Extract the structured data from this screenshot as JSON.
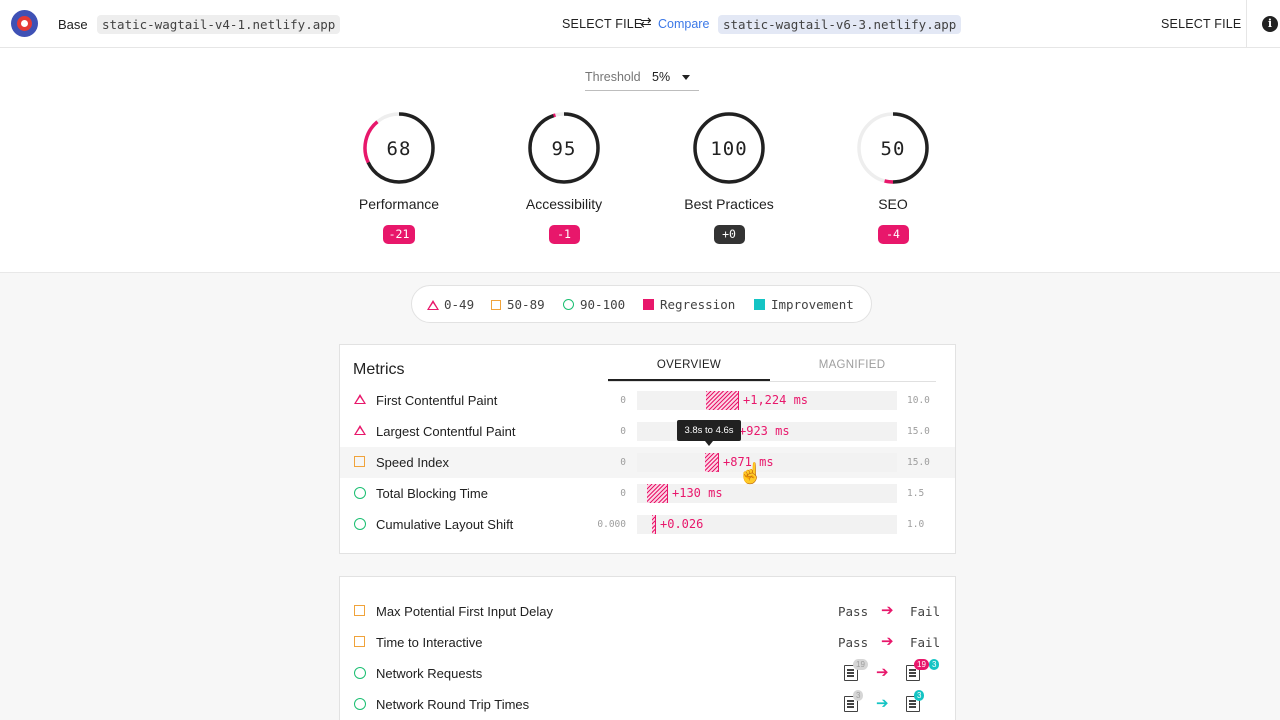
{
  "header": {
    "base_label": "Base",
    "base_url": "static-wagtail-v4-1.netlify.app",
    "select_file_left": "SELECT FILE",
    "compare_label": "Compare",
    "compare_url": "static-wagtail-v6-3.netlify.app",
    "select_file_right": "SELECT FILE",
    "info_symbol": "i"
  },
  "threshold": {
    "label": "Threshold",
    "value": "5%"
  },
  "scores": [
    {
      "name": "Performance",
      "score": "68",
      "delta": "-21",
      "fraction": 0.68,
      "status": "average"
    },
    {
      "name": "Accessibility",
      "score": "95",
      "delta": "-1",
      "fraction": 0.95,
      "status": "pass"
    },
    {
      "name": "Best Practices",
      "score": "100",
      "delta": "+0",
      "fraction": 1.0,
      "status": "pass"
    },
    {
      "name": "SEO",
      "score": "50",
      "delta": "-4",
      "fraction": 0.5,
      "status": "average"
    }
  ],
  "legend": {
    "fail": "0-49",
    "average": "50-89",
    "pass": "90-100",
    "regression": "Regression",
    "improvement": "Improvement"
  },
  "colors": {
    "regression": "#e8176b",
    "improvement": "#14c4c4",
    "fail": "#e8176b",
    "average": "#f0a33a",
    "pass": "#1bbf72"
  },
  "metrics": {
    "title": "Metrics",
    "tab_overview": "OVERVIEW",
    "tab_magnified": "MAGNIFIED",
    "rows": [
      {
        "name": "First Contentful Paint",
        "min": "0",
        "max": "10.0",
        "delta": "+1,224 ms",
        "status": "fail"
      },
      {
        "name": "Largest Contentful Paint",
        "min": "0",
        "max": "15.0",
        "delta": "+923 ms",
        "status": "fail"
      },
      {
        "name": "Speed Index",
        "min": "0",
        "max": "15.0",
        "delta": "+871 ms",
        "status": "average"
      },
      {
        "name": "Total Blocking Time",
        "min": "0",
        "max": "1.5",
        "delta": "+130 ms",
        "status": "pass"
      },
      {
        "name": "Cumulative Layout Shift",
        "min": "0.000",
        "max": "1.0",
        "delta": "+0.026",
        "status": "pass"
      }
    ],
    "tooltip": "3.8s to 4.6s"
  },
  "diagnostics": [
    {
      "name": "Max Potential First Input Delay",
      "from": "Pass",
      "to": "Fail",
      "status": "average"
    },
    {
      "name": "Time to Interactive",
      "from": "Pass",
      "to": "Fail",
      "status": "average"
    },
    {
      "name": "Network Requests",
      "status": "pass",
      "from_badge": "19",
      "to_badges": [
        "19",
        "3"
      ]
    },
    {
      "name": "Network Round Trip Times",
      "status": "pass",
      "from_badge": "3",
      "to_badges": [
        "3"
      ]
    }
  ]
}
